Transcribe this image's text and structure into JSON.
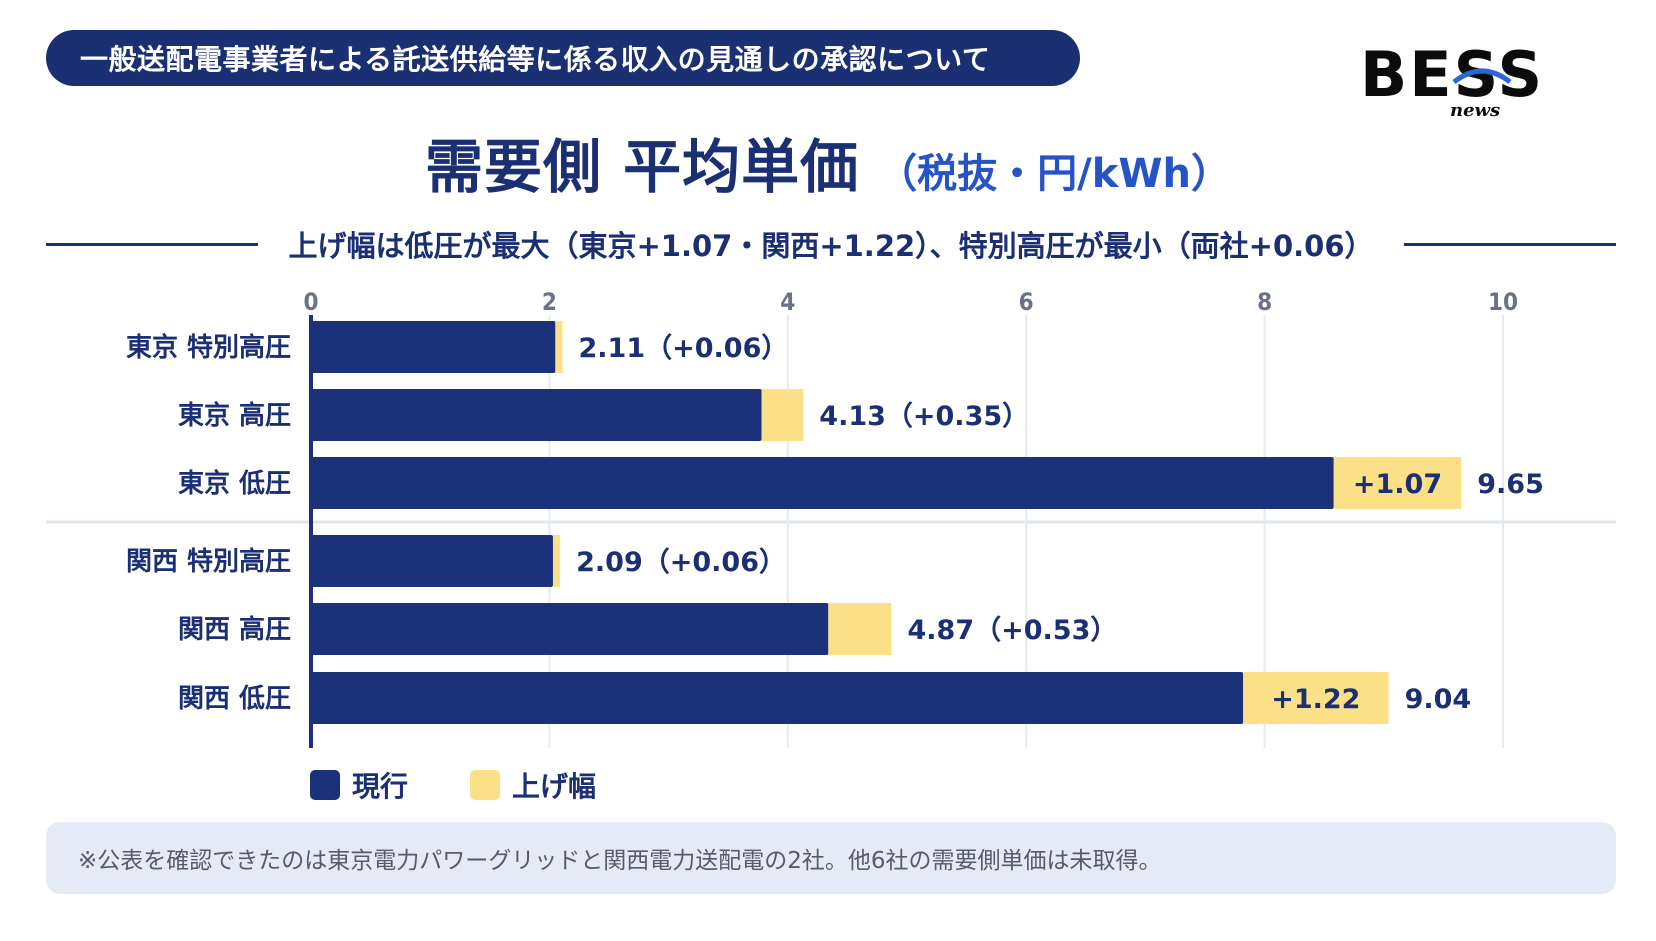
{
  "banner": {
    "text": "一般送配電事業者による託送供給等に係る収入の見通しの承認について"
  },
  "logo": {
    "text": "BESS",
    "sub": "news"
  },
  "title": {
    "main": "需要側 平均単価",
    "unit": "（税抜・円/kWh）"
  },
  "subtitle": "上げ幅は低圧が最大（東京+1.07・関西+1.22）、特別高圧が最小（両社+0.06）",
  "colors": {
    "current": "#1b3179",
    "increase": "#fbe088",
    "highlight": "#e0192b",
    "dark_text": "#1b2f73"
  },
  "chart_data": {
    "type": "bar",
    "orientation": "horizontal",
    "stacked": true,
    "xlim": [
      0,
      10
    ],
    "x_ticks": [
      "0",
      "2",
      "4",
      "6",
      "8",
      "10"
    ],
    "grid": true,
    "categories": [
      "東京 特別高圧",
      "東京 高圧",
      "東京 低圧",
      "関西 特別高圧",
      "関西 高圧",
      "関西 低圧"
    ],
    "series": [
      {
        "name": "現行",
        "values": [
          2.05,
          3.78,
          8.58,
          2.03,
          4.34,
          7.82
        ]
      },
      {
        "name": "上げ幅",
        "values": [
          0.06,
          0.35,
          1.07,
          0.06,
          0.53,
          1.22
        ]
      }
    ],
    "totals": [
      2.11,
      4.13,
      9.65,
      2.09,
      4.87,
      9.04
    ],
    "labels": [
      "2.11（+0.06）",
      "4.13（+0.35）",
      "9.65",
      "2.09（+0.06）",
      "4.87（+0.53）",
      "9.04"
    ],
    "inner_labels": [
      "",
      "",
      "+1.07",
      "",
      "",
      "+1.22"
    ],
    "inner_label_highlight": [
      false,
      false,
      false,
      false,
      false,
      true
    ],
    "legend_position": "bottom-left"
  },
  "legend": [
    {
      "label": "現行"
    },
    {
      "label": "上げ幅"
    }
  ],
  "note": "※公表を確認できたのは東京電力パワーグリッドと関西電力送配電の2社。他6社の需要側単価は未取得。"
}
